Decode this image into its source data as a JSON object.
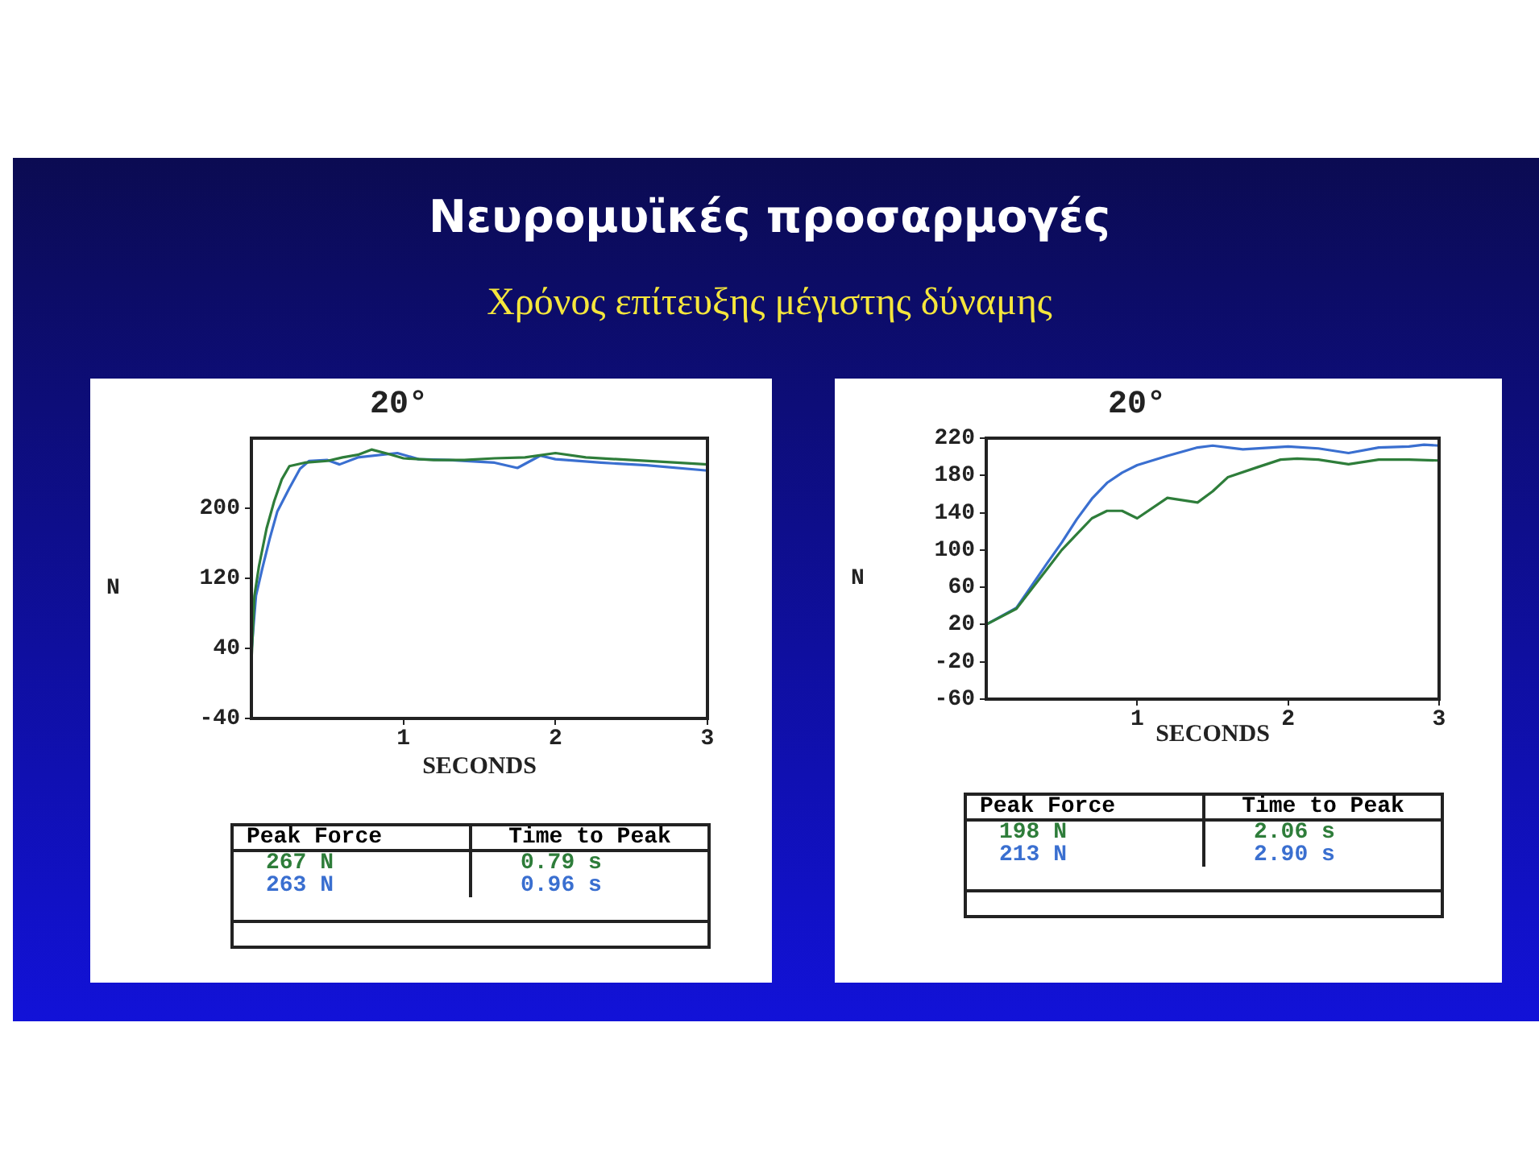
{
  "chart_data": [
    {
      "type": "other",
      "title": "Νευρομυϊκές προσαρμογές",
      "subtitle": "Χρόνος επίτευξης μέγιστης δύναμης"
    },
    {
      "type": "line",
      "title": "20°",
      "xlabel": "SECONDS",
      "ylabel": "N",
      "xlim": [
        0,
        3
      ],
      "xticks": [
        1,
        2,
        3
      ],
      "ylim": [
        -40,
        280
      ],
      "yticks": [
        -40,
        40,
        120,
        200
      ],
      "grid": false,
      "legend": false,
      "marker": "none",
      "series": [
        {
          "color": "#2e7d3a",
          "x": [
            0,
            0.02,
            0.05,
            0.1,
            0.15,
            0.2,
            0.25,
            0.35,
            0.5,
            0.6,
            0.7,
            0.79,
            0.9,
            1.0,
            1.2,
            1.4,
            1.6,
            1.8,
            2.0,
            2.2,
            2.5,
            2.8,
            3.0
          ],
          "values": [
            24,
            100,
            134,
            177,
            208,
            233,
            248,
            252,
            254,
            258,
            261,
            267,
            262,
            257,
            255,
            255,
            257,
            258,
            263,
            258,
            255,
            252,
            250
          ]
        },
        {
          "color": "#3a6fd0",
          "x": [
            0,
            0.03,
            0.07,
            0.12,
            0.17,
            0.25,
            0.32,
            0.38,
            0.5,
            0.58,
            0.7,
            0.96,
            1.1,
            1.3,
            1.6,
            1.75,
            1.9,
            2.0,
            2.3,
            2.6,
            3.0
          ],
          "values": [
            36,
            100,
            130,
            165,
            196,
            223,
            245,
            254,
            255,
            250,
            258,
            263,
            256,
            255,
            252,
            246,
            260,
            256,
            252,
            249,
            243
          ]
        }
      ],
      "annotations": [
        "Peak Force",
        "Time to Peak",
        "267 N",
        "0.79 s",
        "263 N",
        "0.96 s"
      ]
    },
    {
      "type": "line",
      "title": "20°",
      "xlabel": "SECONDS",
      "ylabel": "N",
      "xlim": [
        0,
        3
      ],
      "xticks": [
        1,
        2,
        3
      ],
      "ylim": [
        -60,
        220
      ],
      "yticks": [
        -60,
        -20,
        20,
        60,
        100,
        140,
        180,
        220
      ],
      "grid": false,
      "legend": false,
      "marker": "none",
      "series": [
        {
          "color": "#2e7d3a",
          "x": [
            0,
            0.2,
            0.4,
            0.5,
            0.6,
            0.7,
            0.8,
            0.9,
            1.0,
            1.2,
            1.4,
            1.5,
            1.6,
            1.8,
            1.95,
            2.06,
            2.2,
            2.4,
            2.6,
            2.8,
            3.0
          ],
          "values": [
            20,
            37,
            79,
            100,
            117,
            134,
            142,
            142,
            134,
            156,
            151,
            163,
            178,
            189,
            197,
            198,
            197,
            192,
            197,
            197,
            196
          ]
        },
        {
          "color": "#3a6fd0",
          "x": [
            0,
            0.2,
            0.4,
            0.5,
            0.6,
            0.7,
            0.8,
            0.9,
            1.0,
            1.2,
            1.4,
            1.5,
            1.7,
            2.0,
            2.2,
            2.4,
            2.6,
            2.8,
            2.9,
            3.0
          ],
          "values": [
            20,
            38,
            85,
            108,
            133,
            155,
            172,
            183,
            191,
            201,
            210,
            212,
            208,
            211,
            209,
            204,
            210,
            211,
            213,
            212
          ]
        }
      ],
      "annotations": [
        "Peak Force",
        "Time to Peak",
        "198 N",
        "2.06 s",
        "213 N",
        "2.90 s"
      ]
    }
  ]
}
